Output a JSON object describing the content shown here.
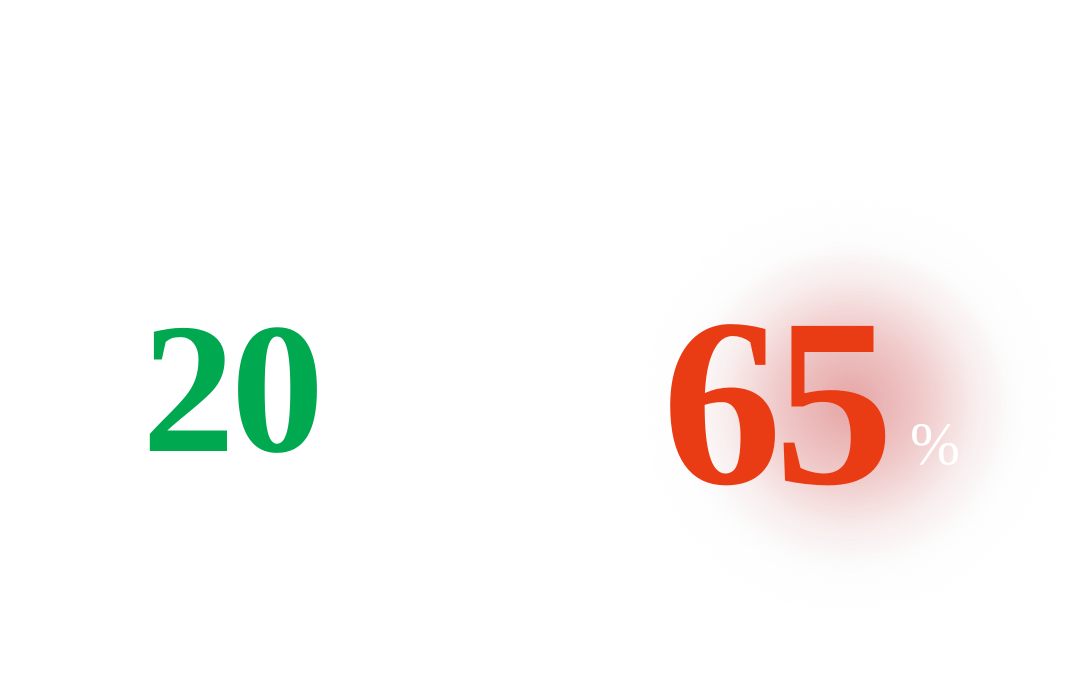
{
  "stats": [
    {
      "value": "20",
      "color": "#00a850"
    },
    {
      "value": "65",
      "unit": "%",
      "color": "#ea3c14",
      "unit_color": "#ffffff",
      "glow_color": "#e8a8a8"
    }
  ]
}
